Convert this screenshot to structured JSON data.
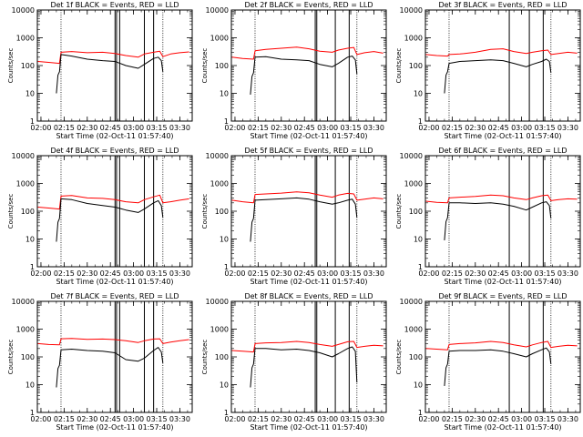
{
  "ylabel": "Counts/sec",
  "xlabel": "Start Time (02-Oct-11 01:57:40)",
  "xticks": [
    "02:00",
    "02:15",
    "02:30",
    "02:45",
    "03:00",
    "03:15",
    "03:30"
  ],
  "yticks": [
    "1",
    "10",
    "100",
    "1000",
    "10000"
  ],
  "colors": {
    "events": "#000000",
    "lld": "#ff0000"
  },
  "chart_data": [
    {
      "type": "line",
      "title": "Det 1f BLACK = Events, RED = LLD",
      "xlim": [
        "01:57:40",
        "03:38"
      ],
      "ylim": [
        1,
        10000
      ],
      "yscale": "log",
      "vlines_dotted": [
        "02:13",
        "03:19"
      ],
      "vlines_solid": [
        "02:48",
        "02:49",
        "02:51",
        "03:07",
        "03:13"
      ],
      "series": [
        {
          "name": "LLD",
          "color": "red",
          "x": [
            "01:58",
            "02:05",
            "02:12",
            "02:13",
            "02:20",
            "02:30",
            "02:40",
            "02:48",
            "02:55",
            "03:03",
            "03:07",
            "03:13",
            "03:17",
            "03:19",
            "03:24",
            "03:30",
            "03:36"
          ],
          "y": [
            140,
            130,
            120,
            300,
            320,
            290,
            300,
            270,
            230,
            200,
            260,
            300,
            330,
            210,
            260,
            290,
            310
          ]
        },
        {
          "name": "Events",
          "color": "black",
          "x": [
            "02:10",
            "02:11",
            "02:12",
            "02:13",
            "02:20",
            "02:30",
            "02:40",
            "02:48",
            "02:55",
            "03:03",
            "03:07",
            "03:13",
            "03:16",
            "03:18",
            "03:19"
          ],
          "y": [
            10,
            45,
            60,
            250,
            220,
            170,
            150,
            140,
            100,
            80,
            110,
            180,
            200,
            150,
            60
          ]
        }
      ]
    },
    {
      "type": "line",
      "title": "Det 2f BLACK = Events, RED = LLD",
      "xlim": [
        "01:57:40",
        "03:38"
      ],
      "ylim": [
        1,
        10000
      ],
      "yscale": "log",
      "vlines_dotted": [
        "02:13",
        "03:19"
      ],
      "vlines_solid": [
        "02:52",
        "02:53",
        "03:05",
        "03:14"
      ],
      "series": [
        {
          "name": "LLD",
          "color": "red",
          "x": [
            "01:58",
            "02:05",
            "02:12",
            "02:13",
            "02:20",
            "02:30",
            "02:40",
            "02:48",
            "02:55",
            "03:03",
            "03:07",
            "03:13",
            "03:17",
            "03:19",
            "03:24",
            "03:30",
            "03:36"
          ],
          "y": [
            200,
            180,
            170,
            340,
            380,
            420,
            460,
            400,
            330,
            300,
            360,
            420,
            450,
            250,
            290,
            320,
            280
          ]
        },
        {
          "name": "Events",
          "color": "black",
          "x": [
            "02:10",
            "02:11",
            "02:12",
            "02:13",
            "02:20",
            "02:30",
            "02:40",
            "02:48",
            "02:55",
            "03:03",
            "03:07",
            "03:13",
            "03:16",
            "03:18",
            "03:19"
          ],
          "y": [
            9,
            40,
            55,
            200,
            210,
            170,
            160,
            150,
            110,
            90,
            120,
            200,
            220,
            160,
            50
          ]
        }
      ]
    },
    {
      "type": "line",
      "title": "Det 3f BLACK = Events, RED = LLD",
      "xlim": [
        "01:57:40",
        "03:38"
      ],
      "ylim": [
        1,
        10000
      ],
      "yscale": "log",
      "vlines_dotted": [
        "02:13",
        "03:19"
      ],
      "vlines_solid": [
        "02:52",
        "03:05",
        "03:14"
      ],
      "series": [
        {
          "name": "LLD",
          "color": "red",
          "x": [
            "01:58",
            "02:05",
            "02:12",
            "02:13",
            "02:20",
            "02:30",
            "02:40",
            "02:48",
            "02:55",
            "03:03",
            "03:07",
            "03:13",
            "03:17",
            "03:19",
            "03:24",
            "03:30",
            "03:36"
          ],
          "y": [
            250,
            230,
            220,
            250,
            260,
            300,
            380,
            400,
            320,
            270,
            300,
            340,
            360,
            250,
            270,
            300,
            280
          ]
        },
        {
          "name": "Events",
          "color": "black",
          "x": [
            "02:10",
            "02:11",
            "02:12",
            "02:13",
            "02:20",
            "02:30",
            "02:40",
            "02:48",
            "02:55",
            "03:03",
            "03:07",
            "03:13",
            "03:16",
            "03:18",
            "03:19"
          ],
          "y": [
            10,
            45,
            60,
            120,
            140,
            150,
            160,
            150,
            120,
            90,
            110,
            140,
            170,
            140,
            55
          ]
        }
      ]
    },
    {
      "type": "line",
      "title": "Det 4f BLACK = Events, RED = LLD",
      "xlim": [
        "01:57:40",
        "03:38"
      ],
      "ylim": [
        1,
        10000
      ],
      "yscale": "log",
      "vlines_dotted": [
        "02:13",
        "03:19"
      ],
      "vlines_solid": [
        "02:48",
        "02:49",
        "02:51",
        "03:07",
        "03:13"
      ],
      "series": [
        {
          "name": "LLD",
          "color": "red",
          "x": [
            "01:58",
            "02:05",
            "02:12",
            "02:13",
            "02:20",
            "02:30",
            "02:40",
            "02:48",
            "02:55",
            "03:03",
            "03:07",
            "03:13",
            "03:17",
            "03:19",
            "03:24",
            "03:30",
            "03:36"
          ],
          "y": [
            140,
            130,
            120,
            350,
            370,
            300,
            290,
            260,
            220,
            200,
            260,
            330,
            380,
            200,
            220,
            250,
            280
          ]
        },
        {
          "name": "Events",
          "color": "black",
          "x": [
            "02:10",
            "02:11",
            "02:12",
            "02:13",
            "02:20",
            "02:30",
            "02:40",
            "02:48",
            "02:55",
            "03:03",
            "03:07",
            "03:13",
            "03:16",
            "03:18",
            "03:19"
          ],
          "y": [
            8,
            40,
            55,
            280,
            260,
            190,
            160,
            140,
            110,
            90,
            120,
            200,
            240,
            160,
            60
          ]
        }
      ]
    },
    {
      "type": "line",
      "title": "Det 5f BLACK = Events, RED = LLD",
      "xlim": [
        "01:57:40",
        "03:38"
      ],
      "ylim": [
        1,
        10000
      ],
      "yscale": "log",
      "vlines_dotted": [
        "02:13",
        "03:19"
      ],
      "vlines_solid": [
        "02:52",
        "02:53",
        "03:05",
        "03:14"
      ],
      "series": [
        {
          "name": "LLD",
          "color": "red",
          "x": [
            "01:58",
            "02:05",
            "02:12",
            "02:13",
            "02:20",
            "02:30",
            "02:40",
            "02:48",
            "02:55",
            "03:03",
            "03:07",
            "03:13",
            "03:17",
            "03:19",
            "03:24",
            "03:30",
            "03:36"
          ],
          "y": [
            250,
            220,
            200,
            400,
            420,
            450,
            500,
            460,
            380,
            320,
            380,
            440,
            420,
            250,
            270,
            300,
            280
          ]
        },
        {
          "name": "Events",
          "color": "black",
          "x": [
            "02:10",
            "02:11",
            "02:12",
            "02:13",
            "02:20",
            "02:30",
            "02:40",
            "02:48",
            "02:55",
            "03:03",
            "03:07",
            "03:13",
            "03:16",
            "03:18",
            "03:19"
          ],
          "y": [
            8,
            40,
            55,
            250,
            260,
            280,
            300,
            270,
            220,
            180,
            200,
            250,
            270,
            180,
            60
          ]
        }
      ]
    },
    {
      "type": "line",
      "title": "Det 6f BLACK = Events, RED = LLD",
      "xlim": [
        "01:57:40",
        "03:38"
      ],
      "ylim": [
        1,
        10000
      ],
      "yscale": "log",
      "vlines_dotted": [
        "02:13",
        "03:19"
      ],
      "vlines_solid": [
        "02:52",
        "03:05",
        "03:14"
      ],
      "series": [
        {
          "name": "LLD",
          "color": "red",
          "x": [
            "01:58",
            "02:05",
            "02:12",
            "02:13",
            "02:20",
            "02:30",
            "02:40",
            "02:48",
            "02:55",
            "03:03",
            "03:07",
            "03:13",
            "03:17",
            "03:19",
            "03:24",
            "03:30",
            "03:36"
          ],
          "y": [
            230,
            210,
            200,
            300,
            320,
            340,
            380,
            360,
            300,
            260,
            300,
            360,
            380,
            240,
            260,
            280,
            270
          ]
        },
        {
          "name": "Events",
          "color": "black",
          "x": [
            "02:10",
            "02:11",
            "02:12",
            "02:13",
            "02:20",
            "02:30",
            "02:40",
            "02:48",
            "02:55",
            "03:03",
            "03:07",
            "03:13",
            "03:16",
            "03:18",
            "03:19"
          ],
          "y": [
            9,
            42,
            58,
            200,
            200,
            190,
            200,
            180,
            150,
            110,
            140,
            200,
            220,
            160,
            55
          ]
        }
      ]
    },
    {
      "type": "line",
      "title": "Det 7f BLACK = Events, RED = LLD",
      "xlim": [
        "01:57:40",
        "03:38"
      ],
      "ylim": [
        1,
        10000
      ],
      "yscale": "log",
      "vlines_dotted": [
        "02:13",
        "03:19"
      ],
      "vlines_solid": [
        "02:48",
        "02:49",
        "02:51",
        "03:07",
        "03:13"
      ],
      "series": [
        {
          "name": "LLD",
          "color": "red",
          "x": [
            "01:58",
            "02:05",
            "02:12",
            "02:13",
            "02:20",
            "02:30",
            "02:40",
            "02:48",
            "02:55",
            "03:03",
            "03:07",
            "03:13",
            "03:17",
            "03:19",
            "03:24",
            "03:30",
            "03:36"
          ],
          "y": [
            300,
            280,
            270,
            450,
            460,
            430,
            440,
            420,
            380,
            330,
            380,
            440,
            450,
            300,
            340,
            380,
            420
          ]
        },
        {
          "name": "Events",
          "color": "black",
          "x": [
            "02:10",
            "02:11",
            "02:12",
            "02:13",
            "02:20",
            "02:30",
            "02:40",
            "02:48",
            "02:55",
            "03:03",
            "03:07",
            "03:13",
            "03:16",
            "03:18",
            "03:19"
          ],
          "y": [
            8,
            38,
            50,
            180,
            190,
            170,
            160,
            140,
            80,
            70,
            90,
            170,
            220,
            150,
            60
          ]
        }
      ]
    },
    {
      "type": "line",
      "title": "Det 8f BLACK = Events, RED = LLD",
      "xlim": [
        "01:57:40",
        "03:38"
      ],
      "ylim": [
        1,
        10000
      ],
      "yscale": "log",
      "vlines_dotted": [
        "02:13",
        "03:19"
      ],
      "vlines_solid": [
        "02:52",
        "02:53",
        "03:05",
        "03:14"
      ],
      "series": [
        {
          "name": "LLD",
          "color": "red",
          "x": [
            "01:58",
            "02:05",
            "02:12",
            "02:13",
            "02:20",
            "02:30",
            "02:40",
            "02:48",
            "02:55",
            "03:03",
            "03:07",
            "03:13",
            "03:17",
            "03:19",
            "03:24",
            "03:30",
            "03:36"
          ],
          "y": [
            170,
            160,
            150,
            300,
            320,
            330,
            360,
            330,
            280,
            240,
            280,
            350,
            360,
            220,
            240,
            260,
            250
          ]
        },
        {
          "name": "Events",
          "color": "black",
          "x": [
            "02:10",
            "02:11",
            "02:12",
            "02:13",
            "02:20",
            "02:30",
            "02:40",
            "02:48",
            "02:55",
            "03:03",
            "03:07",
            "03:13",
            "03:16",
            "03:18",
            "03:19"
          ],
          "y": [
            8,
            40,
            55,
            200,
            200,
            180,
            190,
            170,
            140,
            100,
            130,
            200,
            230,
            160,
            12
          ]
        }
      ]
    },
    {
      "type": "line",
      "title": "Det 9f BLACK = Events, RED = LLD",
      "xlim": [
        "01:57:40",
        "03:38"
      ],
      "ylim": [
        1,
        10000
      ],
      "yscale": "log",
      "vlines_dotted": [
        "02:13",
        "03:19"
      ],
      "vlines_solid": [
        "02:52",
        "03:05",
        "03:14"
      ],
      "series": [
        {
          "name": "LLD",
          "color": "red",
          "x": [
            "01:58",
            "02:05",
            "02:12",
            "02:13",
            "02:20",
            "02:30",
            "02:40",
            "02:48",
            "02:55",
            "03:03",
            "03:07",
            "03:13",
            "03:17",
            "03:19",
            "03:24",
            "03:30",
            "03:36"
          ],
          "y": [
            200,
            190,
            180,
            280,
            300,
            320,
            360,
            330,
            270,
            230,
            270,
            330,
            360,
            220,
            240,
            260,
            250
          ]
        },
        {
          "name": "Events",
          "color": "black",
          "x": [
            "02:10",
            "02:11",
            "02:12",
            "02:13",
            "02:20",
            "02:30",
            "02:40",
            "02:48",
            "02:55",
            "03:03",
            "03:07",
            "03:13",
            "03:16",
            "03:18",
            "03:19"
          ],
          "y": [
            9,
            40,
            55,
            160,
            170,
            170,
            180,
            160,
            130,
            100,
            130,
            180,
            210,
            150,
            55
          ]
        }
      ]
    }
  ]
}
